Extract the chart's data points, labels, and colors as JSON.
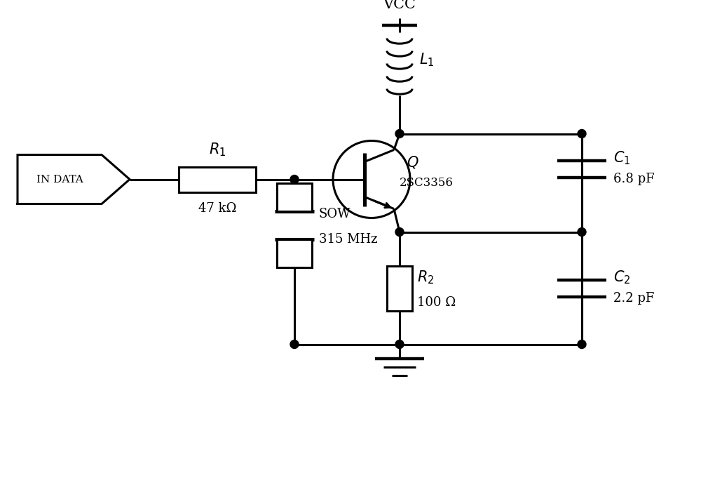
{
  "background_color": "#ffffff",
  "line_color": "#000000",
  "lw": 2.2,
  "fig_width": 10.0,
  "fig_height": 6.81,
  "vcc_text": "VCC",
  "L1_text": "$L_1$",
  "R1_text": "$R_1$",
  "R1_val": "47 kΩ",
  "R2_text": "$R_2$",
  "R2_val": "100 Ω",
  "Q_text": "$Q$",
  "Q_val": "2SC3356",
  "SOW_text": "SOW",
  "SOW_val": "315 MHz",
  "C1_text": "$C_1$",
  "C1_val": "6.8 pF",
  "C2_text": "$C_2$",
  "C2_val": "2.2 pF",
  "INDATA_text": "IN DATA"
}
